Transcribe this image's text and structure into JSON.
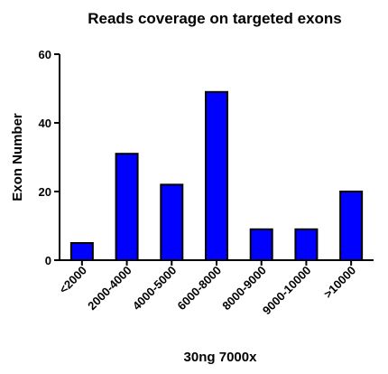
{
  "chart_data": {
    "type": "bar",
    "title": "Reads coverage on targeted exons",
    "xlabel": "30ng 7000x",
    "ylabel": "Exon Number",
    "categories": [
      "<2000",
      "2000-4000",
      "4000-5000",
      "6000-8000",
      "8000-9000",
      "9000-10000",
      ">10000"
    ],
    "values": [
      5,
      31,
      22,
      49,
      9,
      9,
      20
    ],
    "ylim": [
      0,
      60
    ],
    "yticks": [
      0,
      20,
      40,
      60
    ],
    "grid": false,
    "bar_color": "#0000ff",
    "bar_edge_color": "#000000"
  }
}
